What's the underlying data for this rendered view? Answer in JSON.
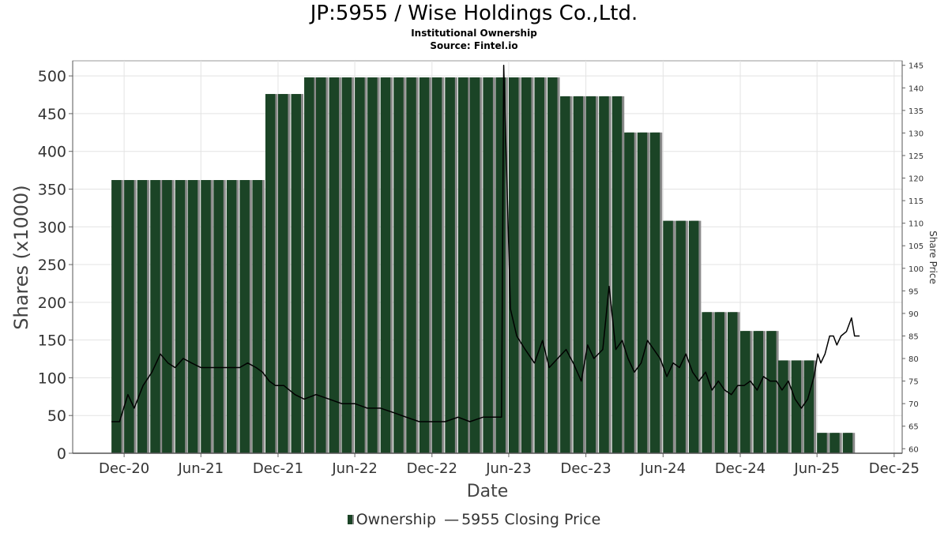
{
  "title": "JP:5955 / Wise Holdings Co.,Ltd.",
  "subtitle": "Institutional Ownership",
  "source": "Source: Fintel.io",
  "legend": {
    "ownership": "Ownership",
    "price_symbol": "—",
    "price": "5955 Closing Price"
  },
  "colors": {
    "bar": "#1b4426",
    "bar_shadow": "#8a8a8a",
    "line": "#000000",
    "grid": "#e3e3e3"
  },
  "chart_data": {
    "type": "bar",
    "xlabel": "Date",
    "ylabel": "Shares (x1000)",
    "y2label": "Share Price",
    "ylim": [
      0,
      520
    ],
    "y_ticks": [
      0,
      50,
      100,
      150,
      200,
      250,
      300,
      350,
      400,
      450,
      500
    ],
    "y2lim": [
      59,
      146
    ],
    "y2_ticks": [
      60,
      65,
      70,
      75,
      80,
      85,
      90,
      95,
      100,
      105,
      110,
      115,
      120,
      125,
      130,
      135,
      140,
      145
    ],
    "xlim": [
      "2020-08-01",
      "2025-12-20"
    ],
    "x_ticks": [
      {
        "label": "Dec-20",
        "date": "2020-12-01"
      },
      {
        "label": "Jun-21",
        "date": "2021-06-01"
      },
      {
        "label": "Dec-21",
        "date": "2021-12-01"
      },
      {
        "label": "Jun-22",
        "date": "2022-06-01"
      },
      {
        "label": "Dec-22",
        "date": "2022-12-01"
      },
      {
        "label": "Jun-23",
        "date": "2023-06-01"
      },
      {
        "label": "Dec-23",
        "date": "2023-12-01"
      },
      {
        "label": "Jun-24",
        "date": "2024-06-01"
      },
      {
        "label": "Dec-24",
        "date": "2024-12-01"
      },
      {
        "label": "Jun-25",
        "date": "2025-06-01"
      },
      {
        "label": "Dec-25",
        "date": "2025-12-01"
      }
    ],
    "grid": true,
    "legend_position": "bottom",
    "series": [
      {
        "name": "Ownership",
        "type": "bar",
        "points": [
          [
            "2020-11-01",
            362
          ],
          [
            "2020-12-01",
            362
          ],
          [
            "2021-01-01",
            362
          ],
          [
            "2021-02-01",
            362
          ],
          [
            "2021-03-01",
            362
          ],
          [
            "2021-04-01",
            362
          ],
          [
            "2021-05-01",
            362
          ],
          [
            "2021-06-01",
            362
          ],
          [
            "2021-07-01",
            362
          ],
          [
            "2021-08-01",
            362
          ],
          [
            "2021-09-01",
            362
          ],
          [
            "2021-10-01",
            362
          ],
          [
            "2021-11-01",
            476
          ],
          [
            "2021-12-01",
            476
          ],
          [
            "2022-01-01",
            476
          ],
          [
            "2022-02-01",
            498
          ],
          [
            "2022-03-01",
            498
          ],
          [
            "2022-04-01",
            498
          ],
          [
            "2022-05-01",
            498
          ],
          [
            "2022-06-01",
            498
          ],
          [
            "2022-07-01",
            498
          ],
          [
            "2022-08-01",
            498
          ],
          [
            "2022-09-01",
            498
          ],
          [
            "2022-10-01",
            498
          ],
          [
            "2022-11-01",
            498
          ],
          [
            "2022-12-01",
            498
          ],
          [
            "2023-01-01",
            498
          ],
          [
            "2023-02-01",
            498
          ],
          [
            "2023-03-01",
            498
          ],
          [
            "2023-04-01",
            498
          ],
          [
            "2023-05-01",
            498
          ],
          [
            "2023-06-01",
            498
          ],
          [
            "2023-07-01",
            498
          ],
          [
            "2023-08-01",
            498
          ],
          [
            "2023-09-01",
            498
          ],
          [
            "2023-10-01",
            473
          ],
          [
            "2023-11-01",
            473
          ],
          [
            "2023-12-01",
            473
          ],
          [
            "2024-01-01",
            473
          ],
          [
            "2024-02-01",
            473
          ],
          [
            "2024-03-01",
            425
          ],
          [
            "2024-04-01",
            425
          ],
          [
            "2024-05-01",
            425
          ],
          [
            "2024-06-01",
            308
          ],
          [
            "2024-07-01",
            308
          ],
          [
            "2024-08-01",
            308
          ],
          [
            "2024-09-01",
            187
          ],
          [
            "2024-10-01",
            187
          ],
          [
            "2024-11-01",
            187
          ],
          [
            "2024-12-01",
            162
          ],
          [
            "2025-01-01",
            162
          ],
          [
            "2025-02-01",
            162
          ],
          [
            "2025-03-01",
            123
          ],
          [
            "2025-04-01",
            123
          ],
          [
            "2025-05-01",
            123
          ],
          [
            "2025-06-01",
            27
          ],
          [
            "2025-07-01",
            27
          ],
          [
            "2025-08-01",
            27
          ]
        ]
      },
      {
        "name": "5955 Closing Price",
        "type": "line",
        "axis": "right",
        "points": [
          [
            "2020-11-01",
            66
          ],
          [
            "2020-11-20",
            66
          ],
          [
            "2020-12-10",
            72
          ],
          [
            "2020-12-25",
            69
          ],
          [
            "2021-01-15",
            74
          ],
          [
            "2021-02-05",
            77
          ],
          [
            "2021-02-25",
            81
          ],
          [
            "2021-03-15",
            79
          ],
          [
            "2021-04-01",
            78
          ],
          [
            "2021-04-20",
            80
          ],
          [
            "2021-05-10",
            79
          ],
          [
            "2021-06-01",
            78
          ],
          [
            "2021-07-01",
            78
          ],
          [
            "2021-08-01",
            78
          ],
          [
            "2021-09-01",
            78
          ],
          [
            "2021-09-20",
            79
          ],
          [
            "2021-10-10",
            78
          ],
          [
            "2021-10-25",
            77
          ],
          [
            "2021-11-10",
            75
          ],
          [
            "2021-11-25",
            74
          ],
          [
            "2021-12-15",
            74
          ],
          [
            "2022-01-10",
            72
          ],
          [
            "2022-02-01",
            71
          ],
          [
            "2022-03-01",
            72
          ],
          [
            "2022-04-01",
            71
          ],
          [
            "2022-05-01",
            70
          ],
          [
            "2022-06-01",
            70
          ],
          [
            "2022-07-01",
            69
          ],
          [
            "2022-08-01",
            69
          ],
          [
            "2022-09-01",
            68
          ],
          [
            "2022-10-01",
            67
          ],
          [
            "2022-11-01",
            66
          ],
          [
            "2022-12-01",
            66
          ],
          [
            "2023-01-01",
            66
          ],
          [
            "2023-02-01",
            67
          ],
          [
            "2023-03-01",
            66
          ],
          [
            "2023-04-01",
            67
          ],
          [
            "2023-05-01",
            67
          ],
          [
            "2023-05-15",
            67
          ],
          [
            "2023-05-20",
            145
          ],
          [
            "2023-06-05",
            91
          ],
          [
            "2023-06-20",
            85
          ],
          [
            "2023-07-10",
            82
          ],
          [
            "2023-08-01",
            79
          ],
          [
            "2023-08-20",
            84
          ],
          [
            "2023-09-05",
            78
          ],
          [
            "2023-09-25",
            80
          ],
          [
            "2023-10-15",
            82
          ],
          [
            "2023-11-01",
            79
          ],
          [
            "2023-11-20",
            75
          ],
          [
            "2023-12-05",
            83
          ],
          [
            "2023-12-20",
            80
          ],
          [
            "2024-01-10",
            82
          ],
          [
            "2024-01-25",
            96
          ],
          [
            "2024-02-10",
            82
          ],
          [
            "2024-02-25",
            84
          ],
          [
            "2024-03-10",
            80
          ],
          [
            "2024-03-25",
            77
          ],
          [
            "2024-04-10",
            79
          ],
          [
            "2024-04-25",
            84
          ],
          [
            "2024-05-10",
            82
          ],
          [
            "2024-05-25",
            80
          ],
          [
            "2024-06-10",
            76
          ],
          [
            "2024-06-25",
            79
          ],
          [
            "2024-07-10",
            78
          ],
          [
            "2024-07-25",
            81
          ],
          [
            "2024-08-10",
            77
          ],
          [
            "2024-08-25",
            75
          ],
          [
            "2024-09-10",
            77
          ],
          [
            "2024-09-25",
            73
          ],
          [
            "2024-10-10",
            75
          ],
          [
            "2024-10-25",
            73
          ],
          [
            "2024-11-10",
            72
          ],
          [
            "2024-11-25",
            74
          ],
          [
            "2024-12-10",
            74
          ],
          [
            "2024-12-25",
            75
          ],
          [
            "2025-01-10",
            73
          ],
          [
            "2025-01-25",
            76
          ],
          [
            "2025-02-10",
            75
          ],
          [
            "2025-02-25",
            75
          ],
          [
            "2025-03-10",
            73
          ],
          [
            "2025-03-25",
            75
          ],
          [
            "2025-04-10",
            71
          ],
          [
            "2025-04-25",
            69
          ],
          [
            "2025-05-10",
            71
          ],
          [
            "2025-05-25",
            76
          ],
          [
            "2025-06-03",
            81
          ],
          [
            "2025-06-10",
            79
          ],
          [
            "2025-06-20",
            81
          ],
          [
            "2025-07-01",
            85
          ],
          [
            "2025-07-10",
            85
          ],
          [
            "2025-07-18",
            83
          ],
          [
            "2025-07-28",
            85
          ],
          [
            "2025-08-10",
            86
          ],
          [
            "2025-08-22",
            89
          ],
          [
            "2025-08-29",
            85
          ],
          [
            "2025-09-10",
            85
          ]
        ]
      }
    ]
  }
}
